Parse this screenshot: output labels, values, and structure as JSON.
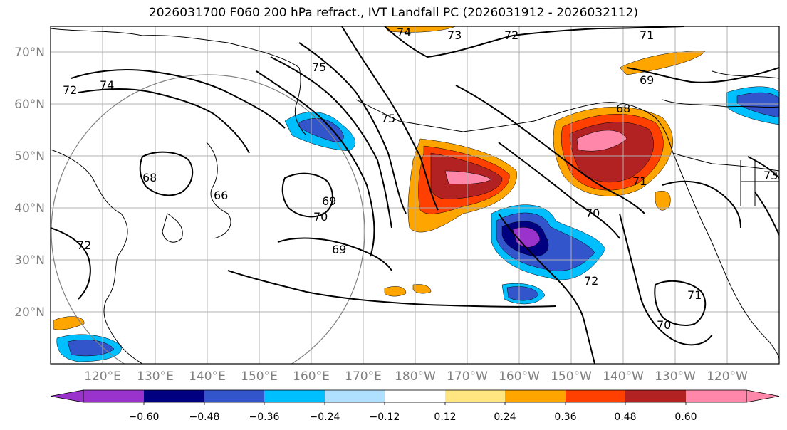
{
  "title": "2026031700 F060 200 hPa refract., IVT Landfall PC (2026031912 - 2026032112)",
  "latitude_labels": [
    "70°N",
    "60°N",
    "50°N",
    "40°N",
    "30°N",
    "20°N"
  ],
  "longitude_labels": [
    "120°E",
    "130°E",
    "140°E",
    "150°E",
    "160°E",
    "170°E",
    "180°W",
    "170°W",
    "160°W",
    "150°W",
    "140°W",
    "130°W",
    "120°W"
  ],
  "colorbar": {
    "colors": [
      "#9933cc",
      "#000080",
      "#3355cc",
      "#00bfff",
      "#b0e0ff",
      "#ffffff",
      "#ffe680",
      "#ffa500",
      "#ff4000",
      "#b22222",
      "#ff88aa"
    ],
    "tick_labels": [
      "−0.60",
      "−0.48",
      "−0.36",
      "−0.24",
      "−0.12",
      "0.12",
      "0.24",
      "0.36",
      "0.48",
      "0.60"
    ]
  },
  "contour_labels": [
    "74",
    "73",
    "72",
    "71",
    "75",
    "69",
    "68",
    "74",
    "75",
    "68",
    "66",
    "69",
    "70",
    "69",
    "72",
    "70",
    "71",
    "72",
    "71",
    "70",
    "72",
    "73"
  ],
  "colors": {
    "coast": "#000000",
    "grid": "#b0b0b0",
    "axis_text": "#7f7f7f"
  }
}
